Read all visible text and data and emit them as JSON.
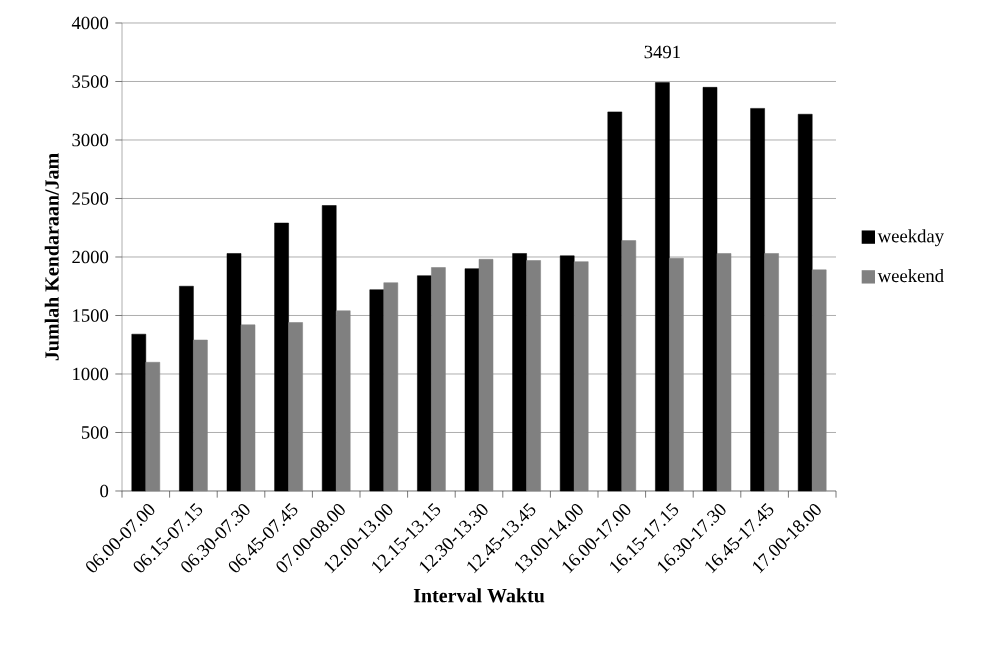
{
  "chart_data": {
    "type": "bar",
    "xlabel": "Interval Waktu",
    "ylabel": "Jumlah Kendaraan/Jam",
    "categories": [
      "06.00-07.00",
      "06.15-07.15",
      "06.30-07.30",
      "06.45-07.45",
      "07.00-08.00",
      "12.00-13.00",
      "12.15-13.15",
      "12.30-13.30",
      "12.45-13.45",
      "13.00-14.00",
      "16.00-17.00",
      "16.15-17.15",
      "16.30-17.30",
      "16.45-17.45",
      "17.00-18.00"
    ],
    "series": [
      {
        "name": "weekday",
        "color": "#000000",
        "values": [
          1340,
          1750,
          2030,
          2290,
          2440,
          1720,
          1840,
          1900,
          2030,
          2010,
          3240,
          3491,
          3450,
          3270,
          3220
        ],
        "value_labels": [
          null,
          null,
          null,
          null,
          null,
          null,
          null,
          null,
          null,
          null,
          null,
          "3491",
          null,
          null,
          null
        ]
      },
      {
        "name": "weekend",
        "color": "#808080",
        "values": [
          1100,
          1290,
          1420,
          1440,
          1540,
          1780,
          1910,
          1980,
          1970,
          1960,
          2140,
          1990,
          2030,
          2030,
          1890
        ]
      }
    ],
    "ylim": [
      0,
      4000
    ],
    "yticks": [
      0,
      500,
      1000,
      1500,
      2000,
      2500,
      3000,
      3500,
      4000
    ],
    "grid": "y",
    "legend": "right"
  }
}
